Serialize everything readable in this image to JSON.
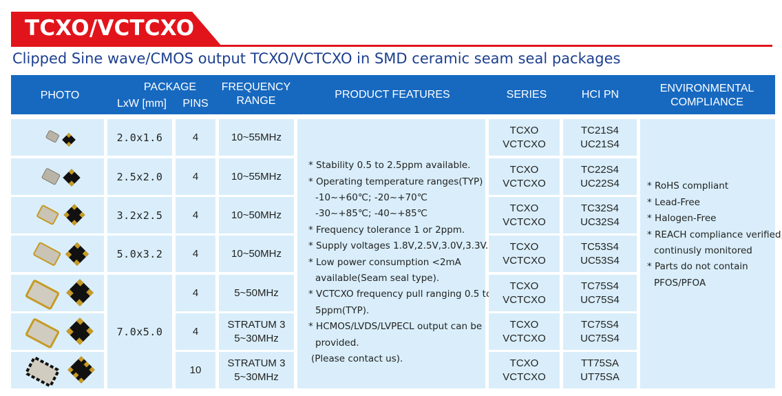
{
  "title": "TCXO/VCTCXO",
  "subtitle": "Clipped Sine wave/CMOS output TCXO/VCTCXO in SMD ceramic seam seal packages",
  "headers": {
    "photo": "PHOTO",
    "package": "PACKAGE",
    "lxw": "LxW [mm]",
    "pins": "PINS",
    "frequency_line1": "FREQUENCY",
    "frequency_line2": "RANGE",
    "features": "PRODUCT FEATURES",
    "series": "SERIES",
    "pn": "HCI PN",
    "env_line1": "ENVIRONMENTAL",
    "env_line2": "COMPLIANCE"
  },
  "rows": [
    {
      "size": "2.0x1.6",
      "pins": "4",
      "freq1": "10~55MHz",
      "freq2": "",
      "series1": "TCXO",
      "series2": "VCTCXO",
      "pn1": "TC21S4",
      "pn2": "UC21S4"
    },
    {
      "size": "2.5x2.0",
      "pins": "4",
      "freq1": "10~55MHz",
      "freq2": "",
      "series1": "TCXO",
      "series2": "VCTCXO",
      "pn1": "TC22S4",
      "pn2": "UC22S4"
    },
    {
      "size": "3.2x2.5",
      "pins": "4",
      "freq1": "10~50MHz",
      "freq2": "",
      "series1": "TCXO",
      "series2": "VCTCXO",
      "pn1": "TC32S4",
      "pn2": "UC32S4"
    },
    {
      "size": "5.0x3.2",
      "pins": "4",
      "freq1": "10~50MHz",
      "freq2": "",
      "series1": "TCXO",
      "series2": "VCTCXO",
      "pn1": "TC53S4",
      "pn2": "UC53S4"
    },
    {
      "size": "7.0x5.0",
      "pins": "4",
      "freq1": "5~50MHz",
      "freq2": "",
      "series1": "TCXO",
      "series2": "VCTCXO",
      "pn1": "TC75S4",
      "pn2": "UC75S4"
    },
    {
      "size": "",
      "pins": "4",
      "freq1": "STRATUM 3",
      "freq2": "5~30MHz",
      "series1": "TCXO",
      "series2": "VCTCXO",
      "pn1": "TC75S4",
      "pn2": "UC75S4"
    },
    {
      "size": "",
      "pins": "10",
      "freq1": "STRATUM 3",
      "freq2": "5~30MHz",
      "series1": "TCXO",
      "series2": "VCTCXO",
      "pn1": "TT75SA",
      "pn2": "UT75SA"
    }
  ],
  "features": [
    "* Stability 0.5 to 2.5ppm available.",
    "* Operating temperature ranges(TYP)",
    "-10~+60℃;  -20~+70℃",
    "-30~+85℃;  -40~+85℃",
    "* Frequency tolerance 1 or 2ppm.",
    "* Supply voltages 1.8V,2.5V,3.0V,3.3V.",
    "* Low power consumption <2mA",
    "available(Seam seal type).",
    "* VCTCXO frequency pull ranging 0.5 to",
    "5ppm(TYP).",
    "* HCMOS/LVDS/LVPECL output can be",
    "provided.",
    "(Please contact us)."
  ],
  "environmental": [
    "* RoHS compliant",
    "* Lead-Free",
    "* Halogen-Free",
    "* REACH compliance verified,",
    "continusly monitored",
    "* Parts do not contain",
    "PFOS/PFOA"
  ],
  "colors": {
    "accent_red": "#e2141b",
    "header_blue": "#1769c0",
    "subtitle_blue": "#1c3f8f",
    "cell_bg": "#d9eefa",
    "chip_gold": "#c79a24"
  }
}
